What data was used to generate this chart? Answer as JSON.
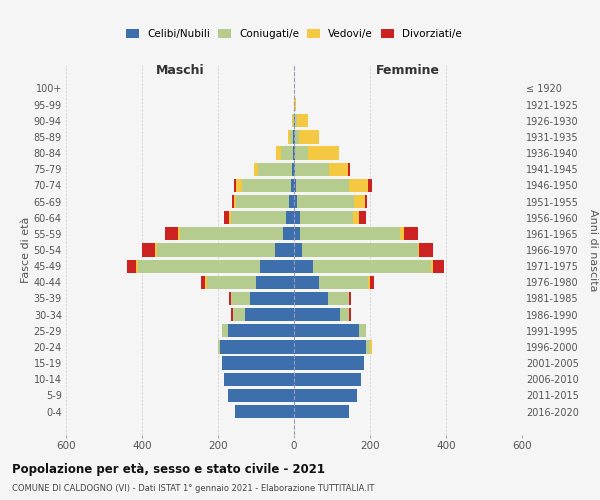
{
  "age_groups": [
    "0-4",
    "5-9",
    "10-14",
    "15-19",
    "20-24",
    "25-29",
    "30-34",
    "35-39",
    "40-44",
    "45-49",
    "50-54",
    "55-59",
    "60-64",
    "65-69",
    "70-74",
    "75-79",
    "80-84",
    "85-89",
    "90-94",
    "95-99",
    "100+"
  ],
  "birth_years": [
    "2016-2020",
    "2011-2015",
    "2006-2010",
    "2001-2005",
    "1996-2000",
    "1991-1995",
    "1986-1990",
    "1981-1985",
    "1976-1980",
    "1971-1975",
    "1966-1970",
    "1961-1965",
    "1956-1960",
    "1951-1955",
    "1946-1950",
    "1941-1945",
    "1936-1940",
    "1931-1935",
    "1926-1930",
    "1921-1925",
    "≤ 1920"
  ],
  "males_celibi": [
    155,
    175,
    185,
    190,
    195,
    175,
    130,
    115,
    100,
    90,
    50,
    30,
    20,
    12,
    8,
    5,
    3,
    2,
    0,
    0,
    0
  ],
  "males_coniugati": [
    0,
    0,
    0,
    0,
    5,
    15,
    30,
    50,
    130,
    320,
    310,
    270,
    145,
    140,
    130,
    90,
    30,
    8,
    3,
    0,
    0
  ],
  "males_vedovi": [
    0,
    0,
    0,
    0,
    0,
    0,
    0,
    0,
    5,
    5,
    5,
    5,
    5,
    5,
    15,
    10,
    15,
    5,
    2,
    0,
    0
  ],
  "males_divorziati": [
    0,
    0,
    0,
    0,
    0,
    0,
    5,
    5,
    10,
    25,
    35,
    35,
    15,
    5,
    5,
    0,
    0,
    0,
    0,
    0,
    0
  ],
  "females_celibi": [
    145,
    165,
    175,
    185,
    190,
    170,
    120,
    90,
    65,
    50,
    20,
    15,
    15,
    8,
    5,
    3,
    3,
    2,
    2,
    0,
    0
  ],
  "females_coniugati": [
    0,
    0,
    0,
    0,
    10,
    20,
    25,
    55,
    130,
    310,
    305,
    265,
    140,
    150,
    140,
    90,
    35,
    10,
    5,
    0,
    0
  ],
  "females_vedovi": [
    0,
    0,
    0,
    0,
    5,
    0,
    0,
    0,
    5,
    5,
    5,
    10,
    15,
    30,
    50,
    50,
    80,
    55,
    30,
    5,
    0
  ],
  "females_divorziati": [
    0,
    0,
    0,
    0,
    0,
    0,
    5,
    5,
    10,
    30,
    35,
    35,
    20,
    5,
    10,
    5,
    0,
    0,
    0,
    0,
    0
  ],
  "colors": {
    "celibi": "#3d6fad",
    "coniugati": "#b5cc8e",
    "vedovi": "#f5c842",
    "divorziati": "#cc2222"
  },
  "xlim": 600,
  "title": "Popolazione per età, sesso e stato civile - 2021",
  "subtitle": "COMUNE DI CALDOGNO (VI) - Dati ISTAT 1° gennaio 2021 - Elaborazione TUTTITALIA.IT",
  "ylabel_left": "Fasce di età",
  "ylabel_right": "Anni di nascita",
  "xlabel_left": "Maschi",
  "xlabel_right": "Femmine",
  "legend_labels": [
    "Celibi/Nubili",
    "Coniugati/e",
    "Vedovi/e",
    "Divorziati/e"
  ],
  "background_color": "#f5f5f5"
}
